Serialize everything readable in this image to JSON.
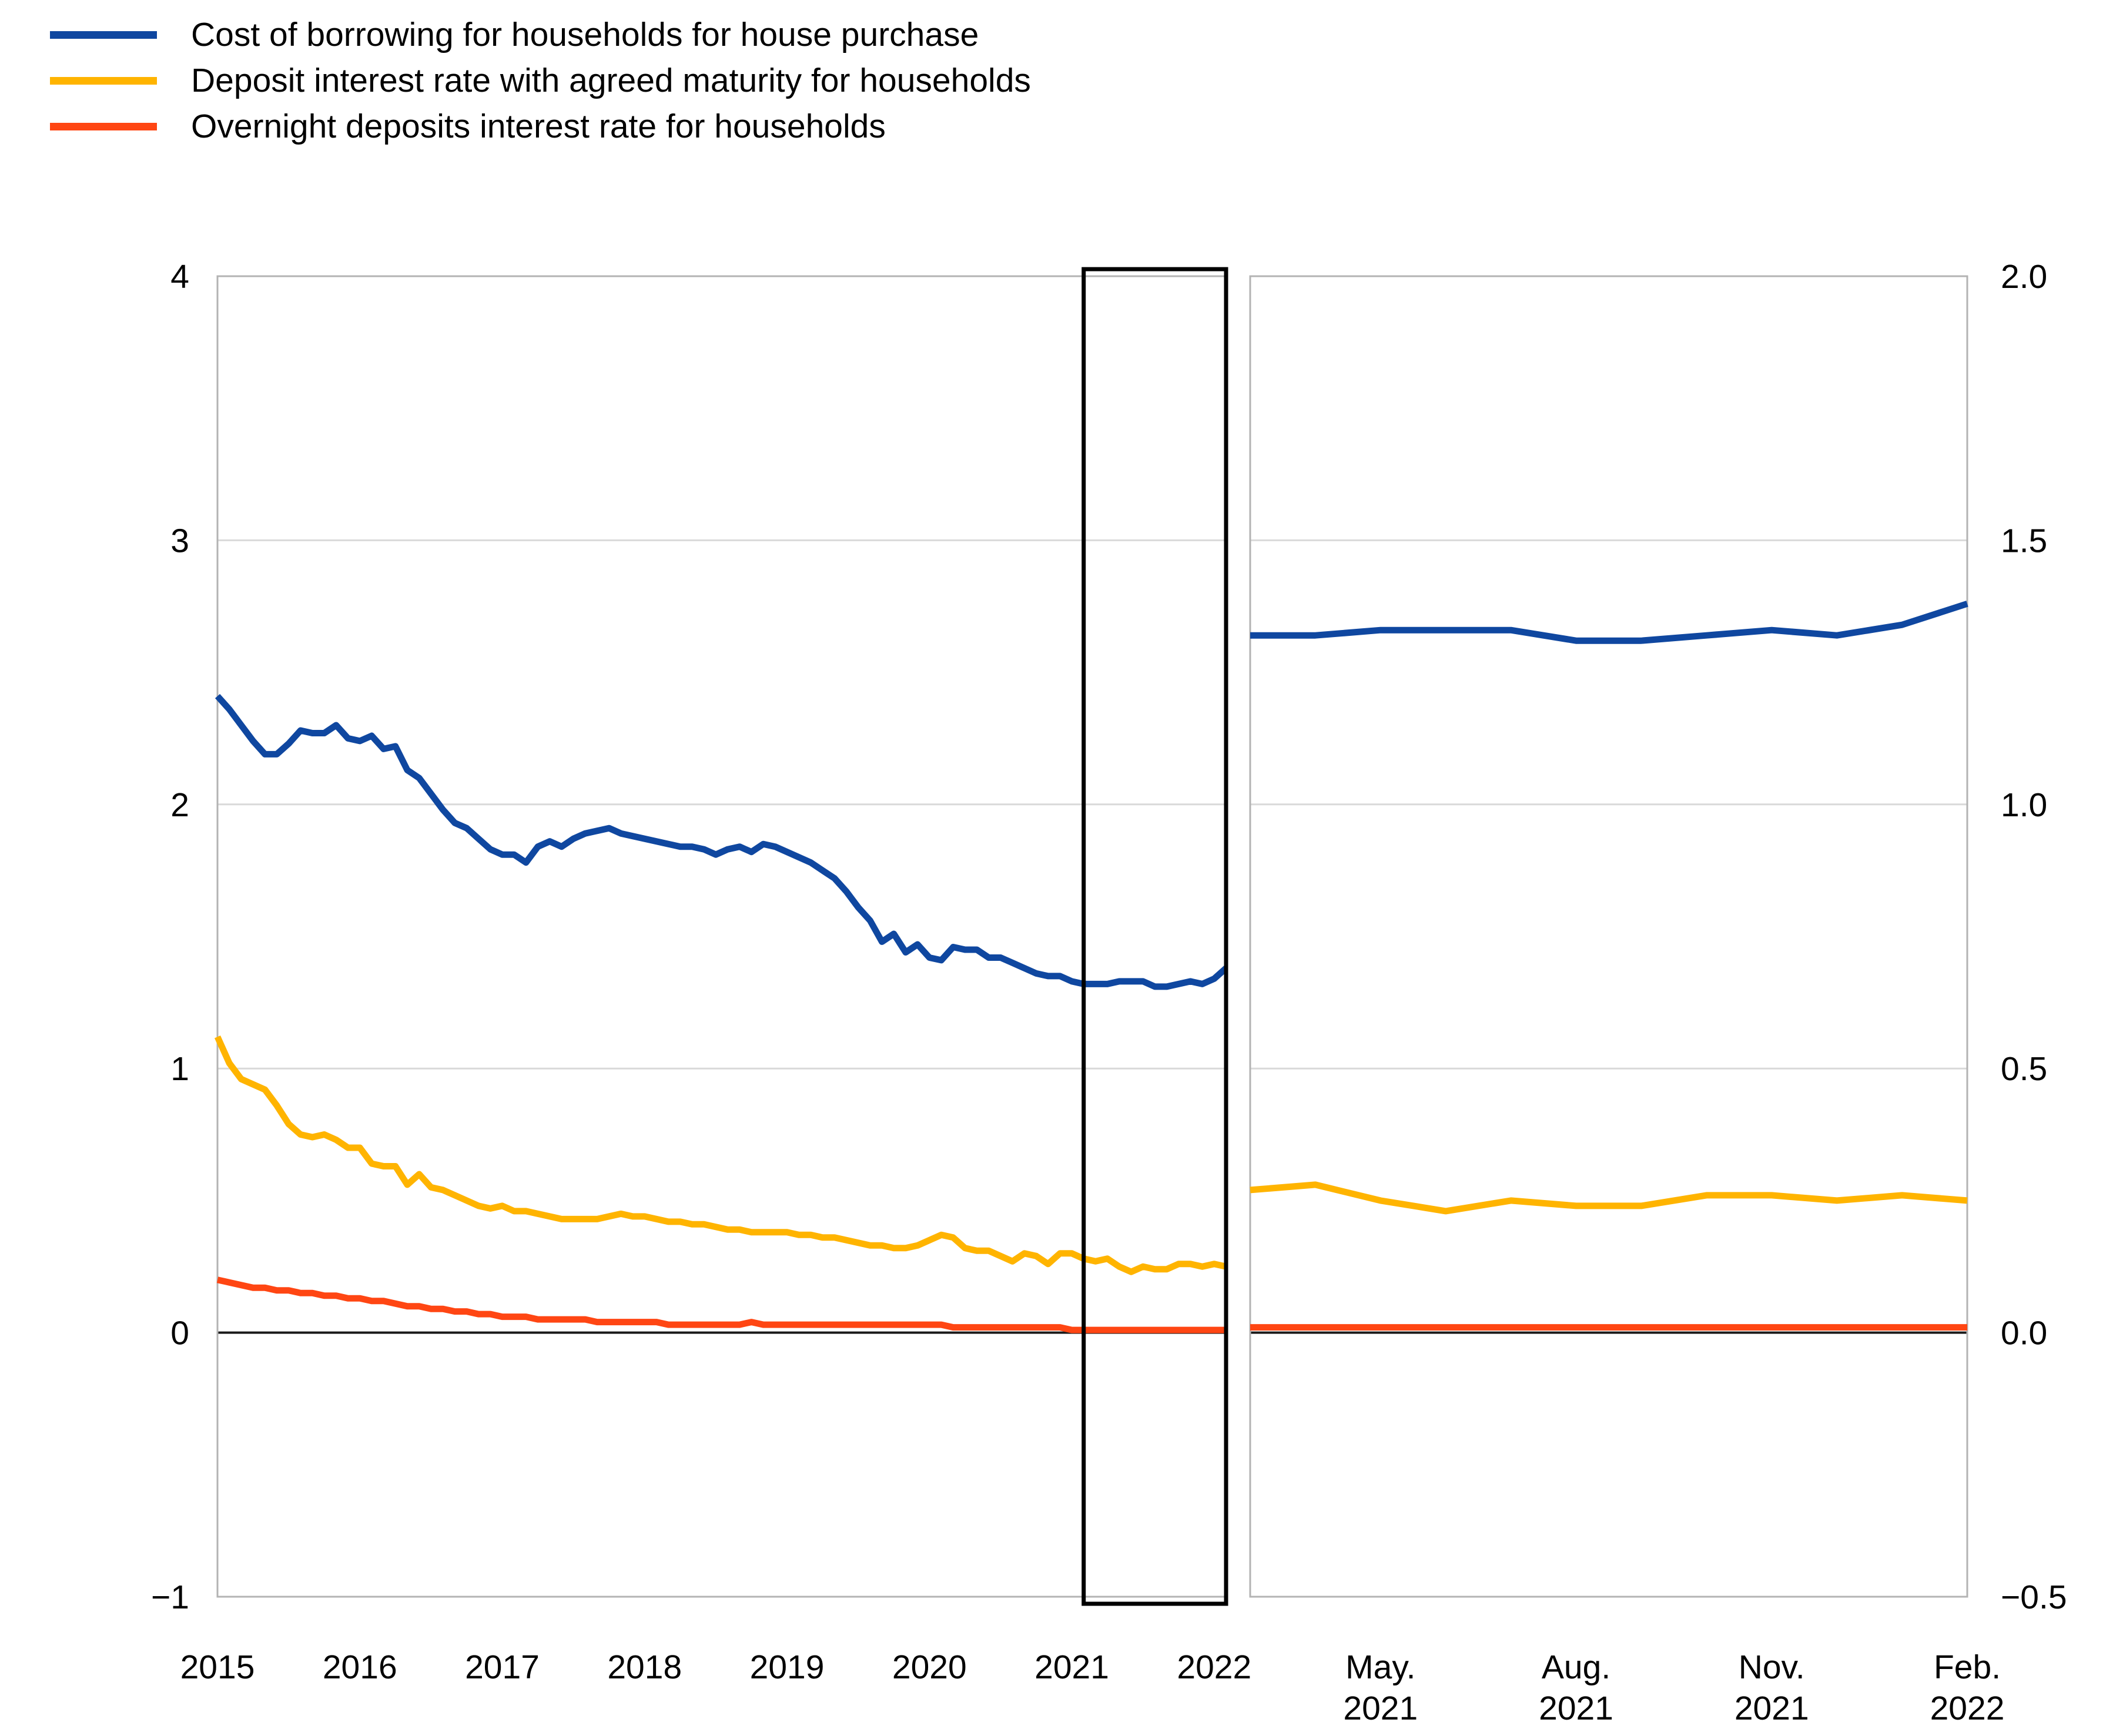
{
  "legend": {
    "items": [
      {
        "label": "Cost of borrowing for households for house purchase",
        "color": "#0f47a0"
      },
      {
        "label": "Deposit interest rate with agreed maturity for households",
        "color": "#ffb400"
      },
      {
        "label": "Overnight deposits interest rate for households",
        "color": "#ff4613"
      }
    ]
  },
  "chart_data": [
    {
      "type": "line",
      "panel": "left",
      "title": "",
      "xlabel": "",
      "ylabel": "",
      "x_start": "2015-01",
      "x_end": "2022-02",
      "x_tick_month_indices": [
        0,
        12,
        24,
        36,
        48,
        60,
        72,
        84
      ],
      "x_tick_labels": [
        "2015",
        "2016",
        "2017",
        "2018",
        "2019",
        "2020",
        "2021",
        "2022"
      ],
      "ylim": [
        -1,
        4
      ],
      "y_tick_values": [
        4,
        3,
        2,
        1,
        0,
        -1
      ],
      "y_tick_labels": [
        "4",
        "3",
        "2",
        "1",
        "0",
        "−1"
      ],
      "grid": true,
      "zero_line": true,
      "highlight_box": {
        "from": "2021-02",
        "start_index": 73,
        "end_index": 85
      },
      "series": [
        {
          "name": "Cost of borrowing for households for house purchase",
          "color": "#0f47a0",
          "values": [
            2.41,
            2.36,
            2.3,
            2.24,
            2.19,
            2.19,
            2.23,
            2.28,
            2.27,
            2.27,
            2.3,
            2.25,
            2.24,
            2.26,
            2.21,
            2.22,
            2.13,
            2.1,
            2.04,
            1.98,
            1.93,
            1.91,
            1.87,
            1.83,
            1.81,
            1.81,
            1.78,
            1.84,
            1.86,
            1.84,
            1.87,
            1.89,
            1.9,
            1.91,
            1.89,
            1.88,
            1.87,
            1.86,
            1.85,
            1.84,
            1.84,
            1.83,
            1.81,
            1.83,
            1.84,
            1.82,
            1.85,
            1.84,
            1.82,
            1.8,
            1.78,
            1.75,
            1.72,
            1.67,
            1.61,
            1.56,
            1.48,
            1.51,
            1.44,
            1.47,
            1.42,
            1.41,
            1.46,
            1.45,
            1.45,
            1.42,
            1.42,
            1.4,
            1.38,
            1.36,
            1.35,
            1.35,
            1.33,
            1.32,
            1.32,
            1.32,
            1.33,
            1.33,
            1.33,
            1.31,
            1.31,
            1.32,
            1.33,
            1.32,
            1.34,
            1.38
          ]
        },
        {
          "name": "Deposit interest rate with agreed maturity for households",
          "color": "#ffb400",
          "values": [
            1.12,
            1.02,
            0.96,
            0.94,
            0.92,
            0.86,
            0.79,
            0.75,
            0.74,
            0.75,
            0.73,
            0.7,
            0.7,
            0.64,
            0.63,
            0.63,
            0.56,
            0.6,
            0.55,
            0.54,
            0.52,
            0.5,
            0.48,
            0.47,
            0.48,
            0.46,
            0.46,
            0.45,
            0.44,
            0.43,
            0.43,
            0.43,
            0.43,
            0.44,
            0.45,
            0.44,
            0.44,
            0.43,
            0.42,
            0.42,
            0.41,
            0.41,
            0.4,
            0.39,
            0.39,
            0.38,
            0.38,
            0.38,
            0.38,
            0.37,
            0.37,
            0.36,
            0.36,
            0.35,
            0.34,
            0.33,
            0.33,
            0.32,
            0.32,
            0.33,
            0.35,
            0.37,
            0.36,
            0.32,
            0.31,
            0.31,
            0.29,
            0.27,
            0.3,
            0.29,
            0.26,
            0.3,
            0.3,
            0.28,
            0.27,
            0.28,
            0.25,
            0.23,
            0.25,
            0.24,
            0.24,
            0.26,
            0.26,
            0.25,
            0.26,
            0.25
          ]
        },
        {
          "name": "Overnight deposits interest rate for households",
          "color": "#ff4613",
          "values": [
            0.2,
            0.19,
            0.18,
            0.17,
            0.17,
            0.16,
            0.16,
            0.15,
            0.15,
            0.14,
            0.14,
            0.13,
            0.13,
            0.12,
            0.12,
            0.11,
            0.1,
            0.1,
            0.09,
            0.09,
            0.08,
            0.08,
            0.07,
            0.07,
            0.06,
            0.06,
            0.06,
            0.05,
            0.05,
            0.05,
            0.05,
            0.05,
            0.04,
            0.04,
            0.04,
            0.04,
            0.04,
            0.04,
            0.03,
            0.03,
            0.03,
            0.03,
            0.03,
            0.03,
            0.03,
            0.04,
            0.03,
            0.03,
            0.03,
            0.03,
            0.03,
            0.03,
            0.03,
            0.03,
            0.03,
            0.03,
            0.03,
            0.03,
            0.03,
            0.03,
            0.03,
            0.03,
            0.02,
            0.02,
            0.02,
            0.02,
            0.02,
            0.02,
            0.02,
            0.02,
            0.02,
            0.02,
            0.01,
            0.01,
            0.01,
            0.01,
            0.01,
            0.01,
            0.01,
            0.01,
            0.01,
            0.01,
            0.01,
            0.01,
            0.01,
            0.01
          ]
        }
      ]
    },
    {
      "type": "line",
      "panel": "right",
      "title": "",
      "xlabel": "",
      "ylabel": "",
      "x_start": "2021-03",
      "x_end": "2022-02",
      "x_tick_indices": [
        2,
        5,
        8,
        11
      ],
      "x_tick_labels": [
        [
          "May.",
          "2021"
        ],
        [
          "Aug.",
          "2021"
        ],
        [
          "Nov.",
          "2021"
        ],
        [
          "Feb.",
          "2022"
        ]
      ],
      "ylim": [
        -0.5,
        2.0
      ],
      "y_tick_values": [
        2.0,
        1.5,
        1.0,
        0.5,
        0.0,
        -0.5
      ],
      "y_tick_labels": [
        "2.0",
        "1.5",
        "1.0",
        "0.5",
        "0.0",
        "−0.5"
      ],
      "grid": true,
      "zero_line": true,
      "series": [
        {
          "name": "Cost of borrowing for households for house purchase",
          "color": "#0f47a0",
          "values": [
            1.32,
            1.32,
            1.33,
            1.33,
            1.33,
            1.31,
            1.31,
            1.32,
            1.33,
            1.32,
            1.34,
            1.38
          ]
        },
        {
          "name": "Deposit interest rate with agreed maturity for households",
          "color": "#ffb400",
          "values": [
            0.27,
            0.28,
            0.25,
            0.23,
            0.25,
            0.24,
            0.24,
            0.26,
            0.26,
            0.25,
            0.26,
            0.25
          ]
        },
        {
          "name": "Overnight deposits interest rate for households",
          "color": "#ff4613",
          "values": [
            0.01,
            0.01,
            0.01,
            0.01,
            0.01,
            0.01,
            0.01,
            0.01,
            0.01,
            0.01,
            0.01,
            0.01
          ]
        }
      ]
    }
  ],
  "style": {
    "gridline_color": "#d9d9d9",
    "frame_color": "#b3b3b3",
    "zero_line_color": "#1a1a1a",
    "highlight_box_color": "#000000"
  }
}
